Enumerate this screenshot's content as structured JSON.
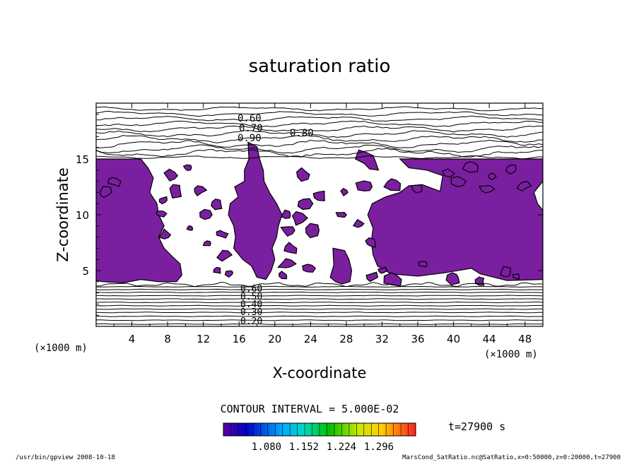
{
  "chart_data": {
    "type": "contour",
    "title": "saturation ratio",
    "xlabel": "X-coordinate",
    "ylabel": "Z-coordinate",
    "x_unit": "(×1000 m)",
    "z_unit": "(×1000 m)",
    "xlim": [
      0,
      50
    ],
    "ylim": [
      0,
      20
    ],
    "x_ticks": [
      4,
      8,
      12,
      16,
      20,
      24,
      28,
      32,
      36,
      40,
      44,
      48
    ],
    "y_ticks": [
      5,
      10,
      15
    ],
    "contour_labels_upper": [
      "0.60",
      "0.70",
      "0.90",
      "0.80"
    ],
    "contour_labels_lower": [
      "0.60",
      "0.50",
      "0.40",
      "0.30",
      "0.20"
    ],
    "contour_interval_text": "CONTOUR INTERVAL = 5.000E-02",
    "colorbar_ticks": [
      "1.080",
      "1.152",
      "1.224",
      "1.296"
    ],
    "time_text": "t=27900 s",
    "fill_color": "#7a1fa0"
  },
  "footer": {
    "left": "/usr/bin/gpview   2008-10-18",
    "right": "MarsCond_SatRatio.nc@SatRatio,x=0:50000,z=0:20000,t=27900"
  }
}
